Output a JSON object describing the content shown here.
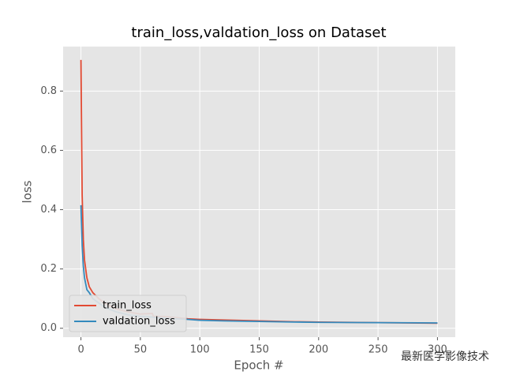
{
  "chart_data": {
    "type": "line",
    "title": "train_loss,valdation_loss on Dataset",
    "x_label": "Epoch #",
    "y_label": "loss",
    "x": [
      0,
      1,
      2,
      3,
      5,
      7,
      10,
      15,
      20,
      30,
      40,
      50,
      60,
      61,
      70,
      80,
      90,
      100,
      120,
      150,
      180,
      200,
      250,
      300
    ],
    "series": [
      {
        "name": "train_loss",
        "color": "#E24A33",
        "values": [
          0.905,
          0.45,
          0.3,
          0.23,
          0.17,
          0.14,
          0.12,
          0.1,
          0.085,
          0.065,
          0.055,
          0.048,
          0.05,
          0.04,
          0.04,
          0.036,
          0.032,
          0.03,
          0.028,
          0.025,
          0.022,
          0.021,
          0.019,
          0.017
        ]
      },
      {
        "name": "valdation_loss",
        "color": "#348ABD",
        "values": [
          0.415,
          0.28,
          0.21,
          0.17,
          0.13,
          0.12,
          0.1,
          0.085,
          0.07,
          0.055,
          0.045,
          0.04,
          0.038,
          0.037,
          0.034,
          0.032,
          0.03,
          0.027,
          0.025,
          0.023,
          0.021,
          0.02,
          0.019,
          0.018
        ]
      }
    ],
    "xlim": [
      -15,
      315
    ],
    "xticks": [
      0,
      50,
      100,
      150,
      200,
      250,
      300
    ],
    "ylim": [
      -0.03,
      0.95
    ],
    "yticks": [
      {
        "value": 0,
        "label": "0.0"
      },
      0.2,
      0.4,
      0.6,
      0.8
    ],
    "grid": true,
    "legend": "lower left",
    "watermark": "最新医学影像技术"
  }
}
